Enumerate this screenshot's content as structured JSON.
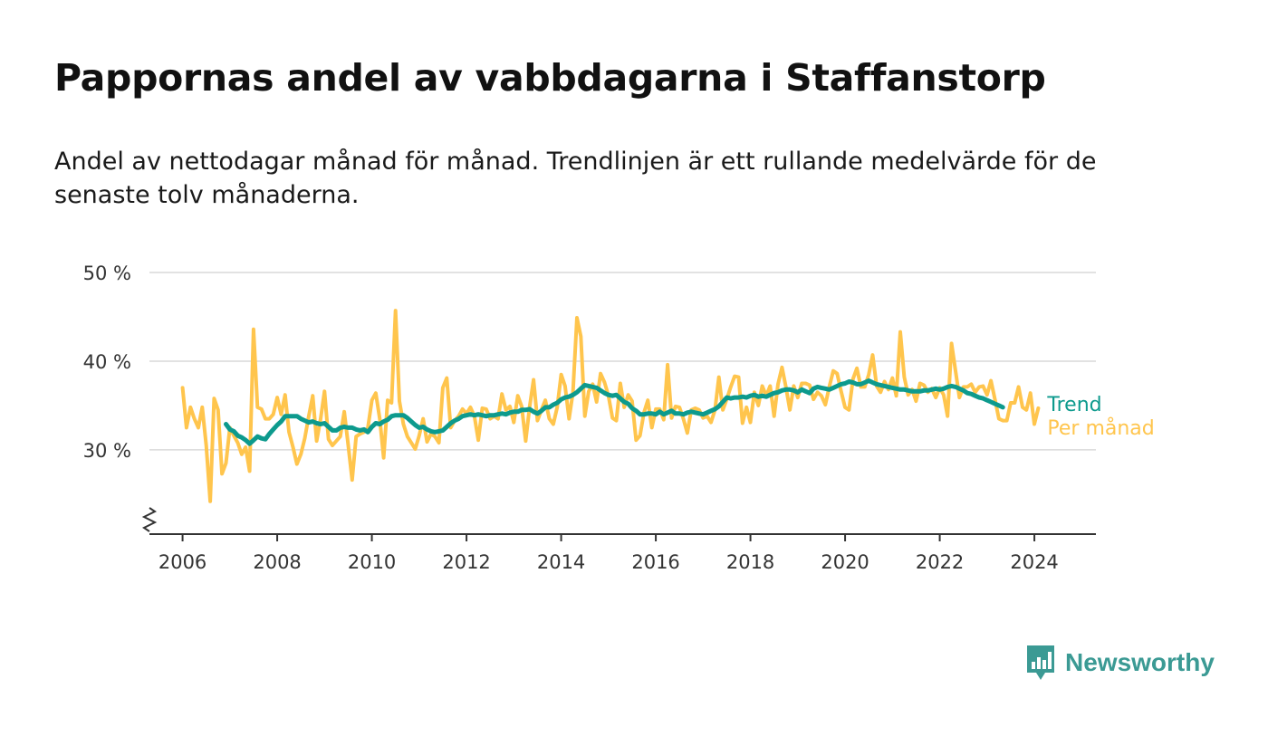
{
  "title": "Pappornas andel av vabbdagarna i Staffanstorp",
  "subtitle": "Andel av nettodagar månad för månad. Trendlinjen är ett rullande medelvärde för de senaste tolv månaderna.",
  "brand": {
    "name": "Newsworthy",
    "icon": "bar-chart-speech-bubble-icon",
    "color": "#3b9a94"
  },
  "chart_data": {
    "type": "line",
    "x_unit": "year",
    "xlim": [
      2005.3,
      2025.3
    ],
    "ylim": [
      20.5,
      50
    ],
    "y_axis_broken": true,
    "grid": "horizontal",
    "y_ticks": [
      {
        "value": 30,
        "label": "30 %"
      },
      {
        "value": 40,
        "label": "40 %"
      },
      {
        "value": 50,
        "label": "50 %"
      }
    ],
    "x_ticks": [
      {
        "value": 2006,
        "label": "2006"
      },
      {
        "value": 2008,
        "label": "2008"
      },
      {
        "value": 2010,
        "label": "2010"
      },
      {
        "value": 2012,
        "label": "2012"
      },
      {
        "value": 2014,
        "label": "2014"
      },
      {
        "value": 2016,
        "label": "2016"
      },
      {
        "value": 2018,
        "label": "2018"
      },
      {
        "value": 2020,
        "label": "2020"
      },
      {
        "value": 2022,
        "label": "2022"
      },
      {
        "value": 2024,
        "label": "2024"
      }
    ],
    "series": [
      {
        "name": "Per månad",
        "color": "#ffc54d",
        "start": 2006.0,
        "step": 0.08333,
        "values": [
          37,
          32.5,
          34.8,
          33.5,
          32.5,
          34.8,
          30.5,
          24.2,
          35.8,
          34.5,
          27.3,
          28.5,
          32.5,
          31.6,
          30.8,
          29.5,
          30.3,
          27.6,
          43.6,
          34.8,
          34.6,
          33.5,
          33.5,
          34,
          35.9,
          34,
          36.2,
          32,
          30.3,
          28.4,
          29.5,
          31.3,
          33.8,
          36.1,
          31,
          33.5,
          36.6,
          31.2,
          30.5,
          31,
          31.5,
          34.3,
          30.6,
          26.6,
          31.5,
          31.8,
          32,
          32.5,
          35.6,
          36.4,
          33.5,
          29.1,
          35.6,
          35.3,
          45.7,
          35.5,
          32.9,
          31.5,
          30.8,
          30.1,
          31.6,
          33.5,
          30.9,
          31.8,
          31.5,
          30.8,
          37,
          38.1,
          32.5,
          33.3,
          33.8,
          34.6,
          34.1,
          34.8,
          33.8,
          31.1,
          34.7,
          34.6,
          33.5,
          33.8,
          33.5,
          36.3,
          34.5,
          34.9,
          33.1,
          36.1,
          34.9,
          31,
          34.8,
          37.9,
          33.3,
          34.5,
          35.6,
          33.5,
          32.9,
          34.8,
          38.5,
          37.2,
          33.5,
          36.5,
          44.9,
          42.8,
          33.8,
          36.6,
          37.4,
          35.4,
          38.6,
          37.6,
          36.1,
          33.6,
          33.3,
          37.5,
          34.8,
          36.2,
          35.5,
          31.1,
          31.6,
          34.2,
          35.6,
          32.5,
          34.6,
          34.6,
          33.4,
          39.6,
          33.6,
          34.9,
          34.8,
          33.5,
          31.9,
          34.5,
          34.7,
          34.5,
          33.6,
          33.8,
          33.1,
          34.5,
          38.2,
          34.5,
          35.7,
          37.1,
          38.3,
          38.2,
          33,
          34.8,
          33.1,
          36.5,
          35,
          37.2,
          36.1,
          37.2,
          33.8,
          37.4,
          39.3,
          37.1,
          34.5,
          37.2,
          35.9,
          37.5,
          37.5,
          37.3,
          35.7,
          36.5,
          36.1,
          35.1,
          37.1,
          38.9,
          38.6,
          36.6,
          34.8,
          34.5,
          38,
          39.2,
          37.1,
          37.1,
          38.5,
          40.7,
          37.2,
          36.5,
          37.7,
          36.8,
          38.1,
          36.1,
          43.3,
          38.2,
          36.2,
          36.8,
          35.5,
          37.5,
          37.3,
          36.5,
          36.9,
          35.9,
          37,
          36.2,
          33.8,
          42,
          38.9,
          35.9,
          37.1,
          37.1,
          37.4,
          36.5,
          37.1,
          37.2,
          36.2,
          37.8,
          35.7,
          33.5,
          33.3,
          33.3,
          35.3,
          35.3,
          37.1,
          34.8,
          34.5,
          36.4,
          32.9,
          34.7
        ]
      },
      {
        "name": "Trend",
        "color": "#0d9a8d",
        "start": 2006.917,
        "step": 0.08333,
        "values": [
          32.9,
          32.3,
          32.1,
          31.6,
          31.4,
          31.1,
          30.7,
          31.1,
          31.5,
          31.3,
          31.2,
          31.8,
          32.3,
          32.8,
          33.2,
          33.8,
          33.8,
          33.8,
          33.8,
          33.5,
          33.3,
          33.1,
          33.2,
          33,
          32.9,
          33,
          32.6,
          32.2,
          32.2,
          32.5,
          32.6,
          32.5,
          32.5,
          32.3,
          32.2,
          32.3,
          32,
          32.6,
          33,
          32.9,
          33.2,
          33.4,
          33.8,
          33.9,
          33.9,
          33.9,
          33.6,
          33.2,
          32.8,
          32.5,
          32.6,
          32.3,
          32.1,
          32,
          32.1,
          32.2,
          32.6,
          33,
          33.3,
          33.5,
          33.8,
          33.9,
          34,
          33.9,
          34,
          33.9,
          33.8,
          33.9,
          33.9,
          34,
          34.1,
          34,
          34.2,
          34.3,
          34.3,
          34.5,
          34.5,
          34.6,
          34.3,
          34.1,
          34.4,
          34.8,
          34.8,
          35.1,
          35.3,
          35.7,
          35.9,
          36,
          36.2,
          36.5,
          36.9,
          37.3,
          37.2,
          37.1,
          37,
          36.7,
          36.4,
          36.2,
          36.1,
          36.2,
          35.8,
          35.4,
          35.2,
          34.7,
          34.4,
          34,
          34,
          34.1,
          34.1,
          34,
          34.3,
          34,
          34.2,
          34.4,
          34.1,
          34.1,
          34,
          34.2,
          34.3,
          34.2,
          34.1,
          34,
          34.2,
          34.4,
          34.6,
          34.9,
          35.4,
          35.9,
          35.8,
          35.9,
          35.9,
          36,
          35.9,
          36.1,
          36.2,
          36,
          36.1,
          36,
          36.2,
          36.4,
          36.5,
          36.7,
          36.8,
          36.8,
          36.7,
          36.5,
          36.8,
          36.6,
          36.4,
          36.9,
          37.1,
          37,
          36.9,
          36.8,
          37,
          37.2,
          37.4,
          37.5,
          37.7,
          37.6,
          37.4,
          37.4,
          37.6,
          37.8,
          37.6,
          37.4,
          37.3,
          37.2,
          37.1,
          37,
          36.9,
          36.8,
          36.8,
          36.7,
          36.6,
          36.6,
          36.6,
          36.7,
          36.7,
          36.8,
          36.9,
          36.8,
          36.9,
          37.1,
          37.2,
          37.1,
          36.9,
          36.7,
          36.4,
          36.3,
          36.1,
          35.9,
          35.8,
          35.6,
          35.4,
          35.2,
          35,
          34.8
        ]
      }
    ]
  }
}
